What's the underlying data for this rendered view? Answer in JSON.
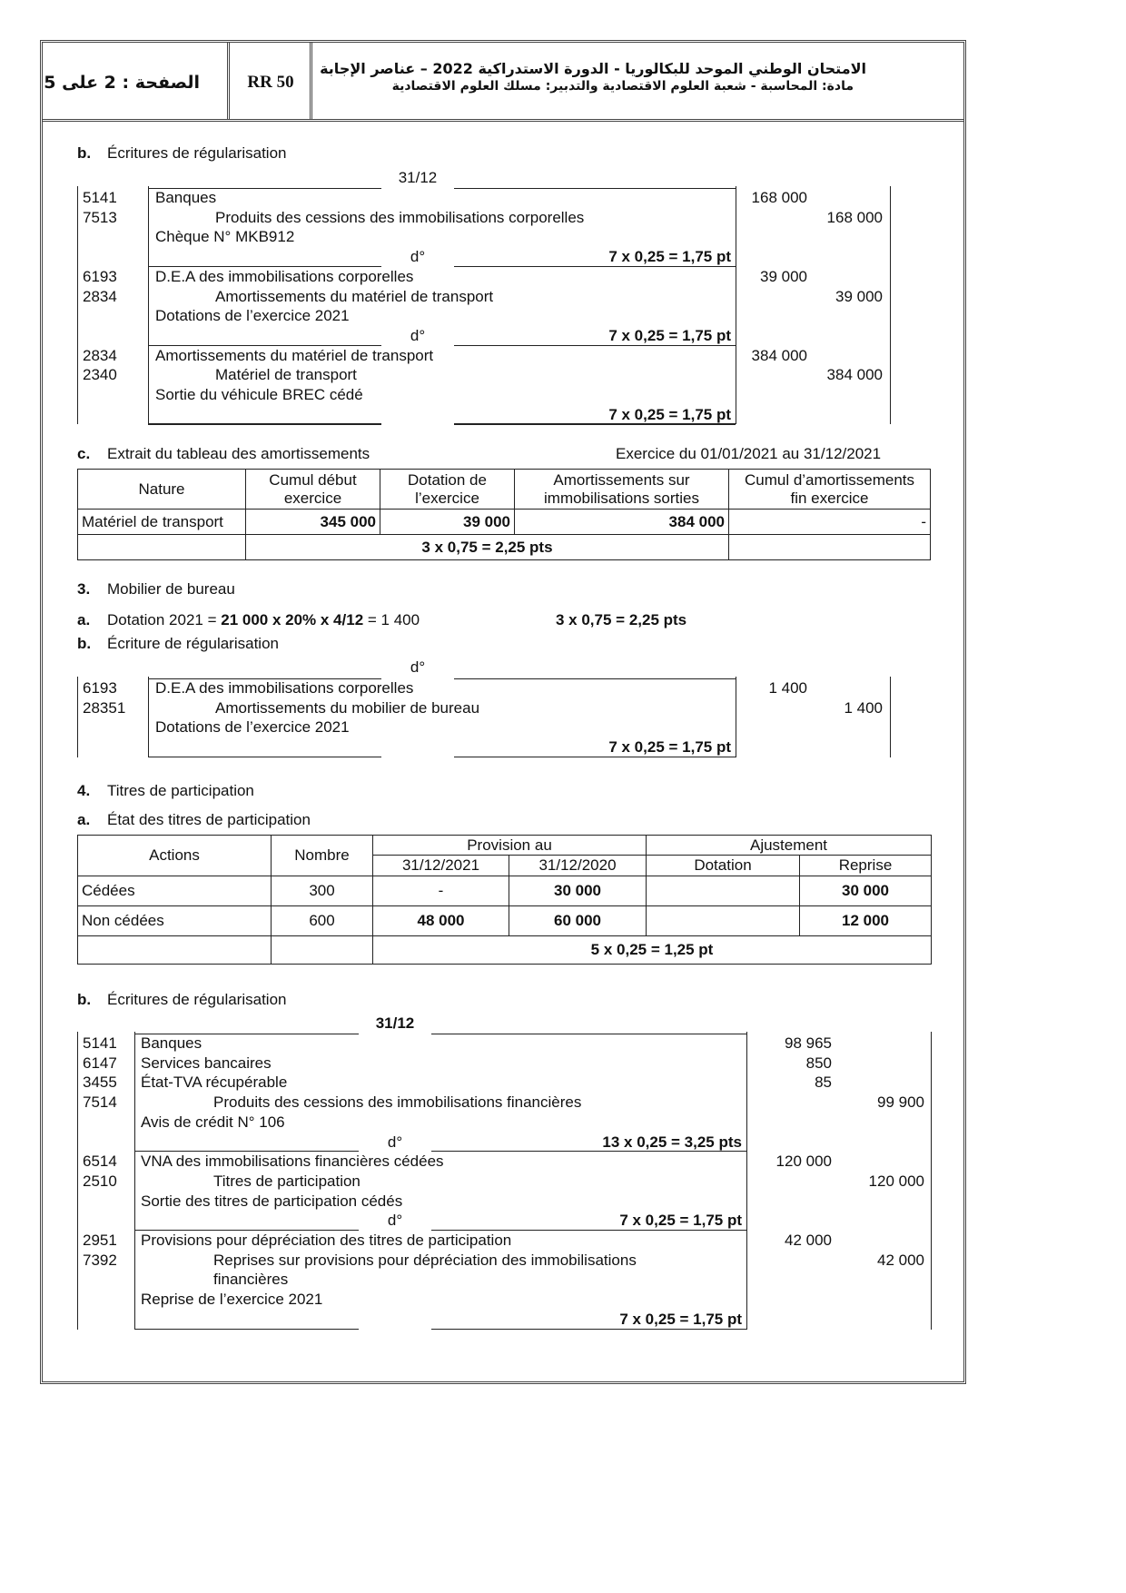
{
  "header": {
    "page": "الصفحة : 2 على 5",
    "code": "RR 50",
    "title_line1": "الامتحان الوطني الموحد للبكالوريا  - الدورة الاستدراكية 2022 – عناصر الإجابة",
    "title_line2": "مادة: المحاسبة - شعبة العلوم الاقتصادية والتدبير: مسلك العلوم الاقتصادية"
  },
  "sec2b": {
    "letter": "b.",
    "title": "Écritures de régularisation"
  },
  "journal1": {
    "date": "31/12",
    "entries": [
      {
        "lines": [
          {
            "account": "5141",
            "label": "Banques",
            "indent": false,
            "debit": "168 000",
            "credit": ""
          },
          {
            "account": "7513",
            "label": "Produits des cessions des immobilisations corporelles",
            "indent": true,
            "debit": "",
            "credit": "168 000"
          },
          {
            "account": "",
            "label": "Chèque N° MKB912",
            "indent": false,
            "debit": "",
            "credit": ""
          }
        ],
        "sep": "d°",
        "points": "7 x 0,25 = 1,75 pt"
      },
      {
        "lines": [
          {
            "account": "6193",
            "label": "D.E.A des immobilisations corporelles",
            "indent": false,
            "debit": "39 000",
            "credit": ""
          },
          {
            "account": "2834",
            "label": "Amortissements du matériel de transport",
            "indent": true,
            "debit": "",
            "credit": "39 000"
          },
          {
            "account": "",
            "label": "Dotations de l’exercice 2021",
            "indent": false,
            "debit": "",
            "credit": ""
          }
        ],
        "sep": "d°",
        "points": "7 x 0,25 = 1,75 pt"
      },
      {
        "lines": [
          {
            "account": "2834",
            "label": "Amortissements du matériel de transport",
            "indent": false,
            "debit": "384 000",
            "credit": ""
          },
          {
            "account": "2340",
            "label": "Matériel de transport",
            "indent": true,
            "debit": "",
            "credit": "384 000"
          },
          {
            "account": "",
            "label": "Sortie du véhicule BREC cédé",
            "indent": false,
            "debit": "",
            "credit": ""
          }
        ],
        "sep": "",
        "points": "7 x 0,25 = 1,75 pt"
      }
    ]
  },
  "sec2c": {
    "letter": "c.",
    "title": "Extrait du tableau des amortissements",
    "period": "Exercice du 01/01/2021 au 31/12/2021"
  },
  "amort_table": {
    "headers": [
      [
        "Nature"
      ],
      [
        "Cumul début",
        "exercice"
      ],
      [
        "Dotation de",
        "l’exercice"
      ],
      [
        "Amortissements sur",
        "immobilisations sorties"
      ],
      [
        "Cumul d’amortissements",
        "fin exercice"
      ]
    ],
    "row": [
      "Matériel de transport",
      "345 000",
      "39 000",
      "384 000",
      "-"
    ],
    "points": "3 x 0,75 = 2,25 pts"
  },
  "sec3": {
    "num": "3.",
    "title": "Mobilier de bureau",
    "a_letter": "a.",
    "a_prefix": "Dotation 2021 = ",
    "a_formula": "21 000 x 20% x 4/12",
    "a_result": " = 1 400",
    "a_points": "3 x 0,75 = 2,25 pts",
    "b_letter": "b.",
    "b_title": "Écriture de régularisation"
  },
  "journal2": {
    "date": "d°",
    "entries": [
      {
        "lines": [
          {
            "account": "6193",
            "label": "D.E.A des immobilisations corporelles",
            "indent": false,
            "debit": "1 400",
            "credit": ""
          },
          {
            "account": "28351",
            "label": "Amortissements du mobilier de bureau",
            "indent": true,
            "debit": "",
            "credit": "1 400"
          },
          {
            "account": "",
            "label": "Dotations de l’exercice 2021",
            "indent": false,
            "debit": "",
            "credit": ""
          }
        ],
        "sep": "",
        "points": "7 x 0,25 = 1,75 pt"
      }
    ]
  },
  "sec4": {
    "num": "4.",
    "title": "Titres de participation",
    "a_letter": "a.",
    "a_title": "État des titres de participation",
    "b_letter": "b.",
    "b_title": "Écritures de régularisation"
  },
  "titres_table": {
    "h_actions": "Actions",
    "h_nombre": "Nombre",
    "h_provision": "Provision au",
    "h_ajustement": "Ajustement",
    "h_2021": "31/12/2021",
    "h_2020": "31/12/2020",
    "h_dotation": "Dotation",
    "h_reprise": "Reprise",
    "rows": [
      [
        "Cédées",
        "300",
        "-",
        "30 000",
        "",
        "30 000"
      ],
      [
        "Non cédées",
        "600",
        "48 000",
        "60 000",
        "",
        "12 000"
      ]
    ],
    "points": "5 x 0,25 = 1,25 pt"
  },
  "journal3": {
    "date": "31/12",
    "entries": [
      {
        "lines": [
          {
            "account": "5141",
            "label": "Banques",
            "indent": false,
            "debit": "98 965",
            "credit": ""
          },
          {
            "account": "6147",
            "label": "Services bancaires",
            "indent": false,
            "debit": "850",
            "credit": ""
          },
          {
            "account": "3455",
            "label": "État-TVA récupérable",
            "indent": false,
            "debit": "85",
            "credit": ""
          },
          {
            "account": "7514",
            "label": "Produits des cessions des immobilisations financières",
            "indent": true,
            "debit": "",
            "credit": "99 900"
          },
          {
            "account": "",
            "label": "Avis de crédit N° 106",
            "indent": false,
            "debit": "",
            "credit": ""
          }
        ],
        "sep": "d°",
        "points": "13 x 0,25 = 3,25 pts"
      },
      {
        "lines": [
          {
            "account": "6514",
            "label": "VNA des immobilisations financières cédées",
            "indent": false,
            "debit": "120 000",
            "credit": ""
          },
          {
            "account": "2510",
            "label": "Titres de participation",
            "indent": true,
            "debit": "",
            "credit": "120 000"
          },
          {
            "account": "",
            "label": "Sortie des titres de participation cédés",
            "indent": false,
            "debit": "",
            "credit": ""
          }
        ],
        "sep": "d°",
        "points": "7 x 0,25 = 1,75 pt"
      },
      {
        "lines": [
          {
            "account": "2951",
            "label": "Provisions pour dépréciation des titres de participation",
            "indent": false,
            "debit": "42 000",
            "credit": ""
          },
          {
            "account": "7392",
            "label": "Reprises sur provisions pour dépréciation des immobilisations",
            "indent": true,
            "debit": "",
            "credit": "42 000"
          },
          {
            "account": "",
            "label": "financières",
            "indent": true,
            "debit": "",
            "credit": ""
          },
          {
            "account": "",
            "label": "Reprise de l’exercice 2021",
            "indent": false,
            "debit": "",
            "credit": ""
          }
        ],
        "sep": "",
        "points": "7 x 0,25 = 1,75 pt"
      }
    ]
  }
}
